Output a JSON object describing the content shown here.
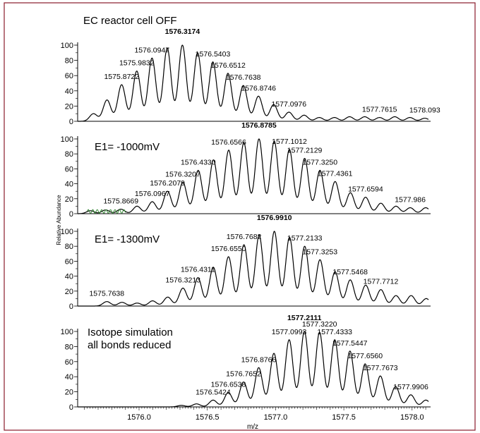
{
  "figure": {
    "y_axis_title": "Relative Abundance",
    "x_axis_title": "m/z",
    "x_ticks": [
      "1576.0",
      "1576.5",
      "1577.0",
      "1577.5",
      "1578.0"
    ],
    "y_ticks": [
      "0",
      "20",
      "40",
      "60",
      "80",
      "100"
    ],
    "frame_color": "#8a1c2c"
  },
  "chart_data": [
    {
      "type": "line",
      "title": "EC reactor cell OFF",
      "xlim": [
        1575.55,
        1578.12
      ],
      "ylim": [
        0,
        100
      ],
      "peaks_x": [
        1575.666,
        1575.7652,
        1575.8722,
        1575.9832,
        1576.0947,
        1576.2061,
        1576.3174,
        1576.4289,
        1576.5403,
        1576.6512,
        1576.7638,
        1576.8746,
        1576.986,
        1577.0976,
        1577.209,
        1577.32,
        1577.431,
        1577.542,
        1577.653,
        1577.7615,
        1577.873,
        1577.984,
        1578.093
      ],
      "peaks_y": [
        10,
        28,
        48,
        66,
        83,
        96,
        100,
        90,
        78,
        63,
        47,
        33,
        22,
        12,
        8,
        5,
        5,
        6,
        6,
        5,
        6,
        5,
        4
      ],
      "labels": [
        {
          "text": "1576.3174",
          "x": 1576.3174,
          "bold": true
        },
        {
          "text": "1576.0947",
          "x": 1576.0947,
          "bold": false
        },
        {
          "text": "1575.9832",
          "x": 1575.9832,
          "bold": false
        },
        {
          "text": "1575.8722",
          "x": 1575.8722,
          "bold": false
        },
        {
          "text": "1576.5403",
          "x": 1576.5403,
          "bold": false
        },
        {
          "text": "1576.6512",
          "x": 1576.6512,
          "bold": false
        },
        {
          "text": "1576.7638",
          "x": 1576.7638,
          "bold": false
        },
        {
          "text": "1576.8746",
          "x": 1576.8746,
          "bold": false
        },
        {
          "text": "1577.0976",
          "x": 1577.0976,
          "bold": false
        },
        {
          "text": "1577.7615",
          "x": 1577.7615,
          "bold": false
        },
        {
          "text": "1578.093",
          "x": 1578.093,
          "bold": false
        }
      ]
    },
    {
      "type": "line",
      "title": "E1= -1000mV",
      "xlim": [
        1575.55,
        1578.12
      ],
      "ylim": [
        0,
        100
      ],
      "peaks_x": [
        1575.6435,
        1575.7551,
        1575.8669,
        1575.9853,
        1576.0967,
        1576.2079,
        1576.3207,
        1576.433,
        1576.5448,
        1576.6566,
        1576.7676,
        1576.8785,
        1576.99,
        1577.1012,
        1577.2129,
        1577.325,
        1577.4361,
        1577.548,
        1577.6594,
        1577.771,
        1577.882,
        1577.986,
        1578.1
      ],
      "peaks_y": [
        4,
        5,
        6,
        10,
        16,
        30,
        42,
        58,
        72,
        85,
        95,
        100,
        97,
        86,
        74,
        58,
        43,
        28,
        22,
        14,
        10,
        8,
        8
      ],
      "labels": [
        {
          "text": "1576.8785",
          "x": 1576.8785,
          "bold": true
        },
        {
          "text": "1576.6566",
          "x": 1576.6566,
          "bold": false
        },
        {
          "text": "1577.1012",
          "x": 1577.1012,
          "bold": false
        },
        {
          "text": "1576.4330",
          "x": 1576.433,
          "bold": false
        },
        {
          "text": "1577.2129",
          "x": 1577.2129,
          "bold": false
        },
        {
          "text": "1576.3207",
          "x": 1576.3207,
          "bold": false
        },
        {
          "text": "1577.3250",
          "x": 1577.325,
          "bold": false
        },
        {
          "text": "1576.2079",
          "x": 1576.2079,
          "bold": false
        },
        {
          "text": "1577.4361",
          "x": 1577.4361,
          "bold": false
        },
        {
          "text": "1576.0967",
          "x": 1576.0967,
          "bold": false
        },
        {
          "text": "1577.6594",
          "x": 1577.6594,
          "bold": false
        },
        {
          "text": "1575.8669",
          "x": 1575.8669,
          "bold": false
        },
        {
          "text": "1577.986",
          "x": 1577.986,
          "bold": false
        }
      ]
    },
    {
      "type": "line",
      "title": "E1= -1300mV",
      "xlim": [
        1575.55,
        1578.12
      ],
      "ylim": [
        0,
        100
      ],
      "peaks_x": [
        1575.7638,
        1575.875,
        1575.986,
        1576.099,
        1576.21,
        1576.3213,
        1576.4311,
        1576.5435,
        1576.655,
        1576.7682,
        1576.8796,
        1576.991,
        1577.102,
        1577.2133,
        1577.3253,
        1577.4358,
        1577.5468,
        1577.66,
        1577.7712,
        1577.882,
        1577.993,
        1578.104
      ],
      "peaks_y": [
        6,
        5,
        4,
        7,
        12,
        24,
        38,
        52,
        66,
        82,
        95,
        100,
        92,
        80,
        62,
        46,
        35,
        28,
        22,
        14,
        14,
        10
      ],
      "labels": [
        {
          "text": "1576.9910",
          "x": 1576.991,
          "bold": true
        },
        {
          "text": "1576.7682",
          "x": 1576.7682,
          "bold": false
        },
        {
          "text": "1577.2133",
          "x": 1577.2133,
          "bold": false
        },
        {
          "text": "1576.6550",
          "x": 1576.655,
          "bold": false
        },
        {
          "text": "1577.3253",
          "x": 1577.3253,
          "bold": false
        },
        {
          "text": "1576.4311",
          "x": 1576.4311,
          "bold": false
        },
        {
          "text": "1577.5468",
          "x": 1577.5468,
          "bold": false
        },
        {
          "text": "1576.3213",
          "x": 1576.3213,
          "bold": false
        },
        {
          "text": "1577.7712",
          "x": 1577.7712,
          "bold": false
        },
        {
          "text": "1575.7638",
          "x": 1575.7638,
          "bold": false
        }
      ]
    },
    {
      "type": "line",
      "title": "Isotope simulation all bonds reduced",
      "title_lines": [
        "Isotope simulation",
        "all bonds reduced"
      ],
      "xlim": [
        1575.55,
        1578.12
      ],
      "ylim": [
        0,
        100
      ],
      "peaks_x": [
        1576.3096,
        1576.4209,
        1576.5424,
        1576.6538,
        1576.7652,
        1576.8766,
        1576.9879,
        1577.0993,
        1577.2111,
        1577.322,
        1577.4333,
        1577.5447,
        1577.656,
        1577.7673,
        1577.879,
        1577.9906,
        1578.101
      ],
      "peaks_y": [
        2,
        4,
        9,
        19,
        33,
        52,
        71,
        89,
        100,
        99,
        89,
        74,
        57,
        41,
        27,
        16,
        9
      ],
      "labels": [
        {
          "text": "1577.2111",
          "x": 1577.2111,
          "bold": true
        },
        {
          "text": "1577.0993",
          "x": 1577.0993,
          "bold": false
        },
        {
          "text": "1577.3220",
          "x": 1577.322,
          "bold": false
        },
        {
          "text": "1576.8766",
          "x": 1576.8766,
          "bold": false
        },
        {
          "text": "1577.4333",
          "x": 1577.4333,
          "bold": false
        },
        {
          "text": "1576.7652",
          "x": 1576.7652,
          "bold": false
        },
        {
          "text": "1577.5447",
          "x": 1577.5447,
          "bold": false
        },
        {
          "text": "1576.6538",
          "x": 1576.6538,
          "bold": false
        },
        {
          "text": "1577.6560",
          "x": 1577.656,
          "bold": false
        },
        {
          "text": "1576.5424",
          "x": 1576.5424,
          "bold": false
        },
        {
          "text": "1577.7673",
          "x": 1577.7673,
          "bold": false
        },
        {
          "text": "1577.9906",
          "x": 1577.9906,
          "bold": false
        }
      ]
    }
  ]
}
